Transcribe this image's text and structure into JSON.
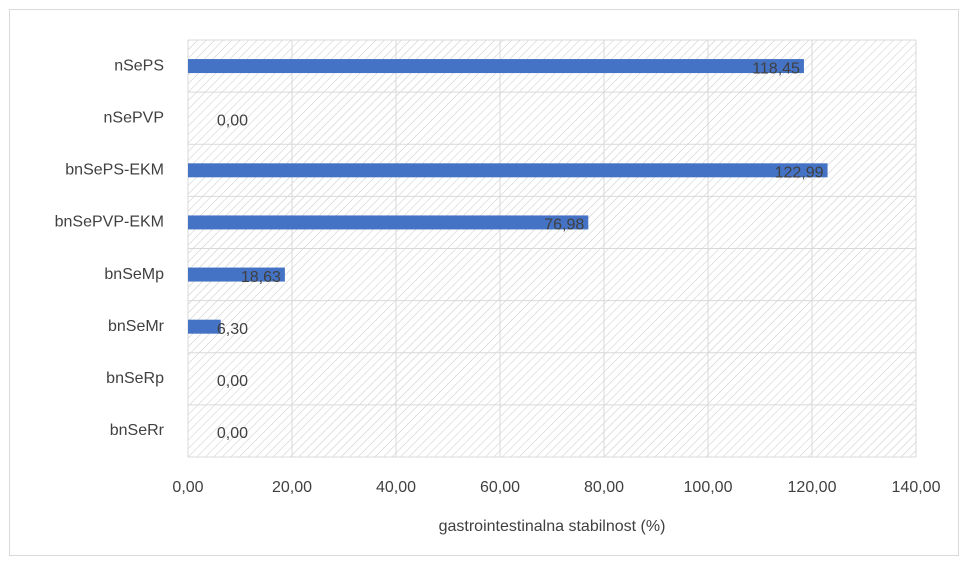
{
  "chart_data": {
    "type": "bar",
    "orientation": "horizontal",
    "x_label": "gastrointestinalna stabilnost (%)",
    "categories": [
      "nSePS",
      "nSePVP",
      "bnSePS-EKM",
      "bnSePVP-EKM",
      "bnSeMp",
      "bnSeMr",
      "bnSeRp",
      "bnSeRr"
    ],
    "values": [
      118.45,
      0,
      122.99,
      76.98,
      18.63,
      6.3,
      0,
      0
    ],
    "value_labels": [
      "118,45",
      "0,00",
      "122,99",
      "76,98",
      "18,63",
      "6,30",
      "0,00",
      "0,00"
    ],
    "color": "#4472c4",
    "xlim": [
      0,
      140
    ],
    "xticks": [
      {
        "value": 0,
        "label": "0,00"
      },
      {
        "value": 20,
        "label": "20,00"
      },
      {
        "value": 40,
        "label": "40,00"
      },
      {
        "value": 60,
        "label": "60,00"
      },
      {
        "value": 80,
        "label": "80,00"
      },
      {
        "value": 100,
        "label": "100,00"
      },
      {
        "value": 120,
        "label": "120,00"
      },
      {
        "value": 140,
        "label": "140,00"
      }
    ],
    "grid": true
  }
}
